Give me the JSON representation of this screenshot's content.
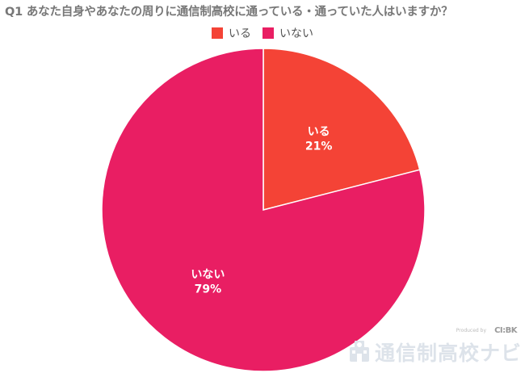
{
  "title": "Q1 あなた自身やあなたの周りに通信制高校に通っている・通っていた人はいますか？",
  "legend": [
    {
      "label": "いる",
      "color": "#f44336"
    },
    {
      "label": "いない",
      "color": "#e91e63"
    }
  ],
  "chart_data": {
    "type": "pie",
    "title": "Q1 あなた自身やあなたの周りに通信制高校に通っている・通っていた人はいますか？",
    "slices": [
      {
        "label": "いる",
        "value": 21,
        "value_label": "21%",
        "color": "#f44336"
      },
      {
        "label": "いない",
        "value": 79,
        "value_label": "79%",
        "color": "#e91e63"
      }
    ],
    "legend_position": "top",
    "start_angle": "12 o'clock",
    "direction": "clockwise"
  },
  "logo": {
    "produced_by": "Produced by",
    "brand": "CI:BK",
    "name": "通信制高校ナビ"
  }
}
